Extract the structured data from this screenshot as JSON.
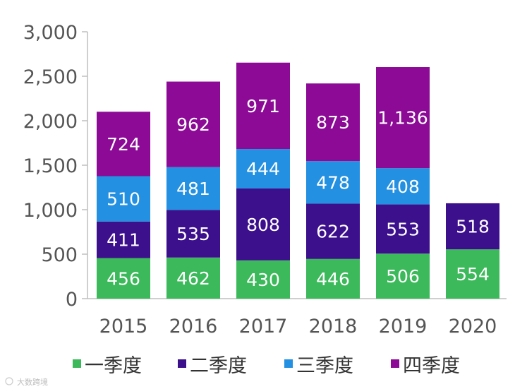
{
  "chart_data": {
    "type": "bar",
    "stacked": true,
    "categories": [
      "2015",
      "2016",
      "2017",
      "2018",
      "2019",
      "2020"
    ],
    "series": [
      {
        "name": "一季度",
        "color": "#3cb95a",
        "values": [
          456,
          462,
          430,
          446,
          506,
          554
        ],
        "labels": [
          "456",
          "462",
          "430",
          "446",
          "506",
          "554"
        ]
      },
      {
        "name": "二季度",
        "color": "#3c0f8c",
        "values": [
          411,
          535,
          808,
          622,
          553,
          518
        ],
        "labels": [
          "411",
          "535",
          "808",
          "622",
          "553",
          "518"
        ]
      },
      {
        "name": "三季度",
        "color": "#2390e1",
        "values": [
          510,
          481,
          444,
          478,
          408,
          null
        ],
        "labels": [
          "510",
          "481",
          "444",
          "478",
          "408",
          ""
        ]
      },
      {
        "name": "四季度",
        "color": "#8c0a96",
        "values": [
          724,
          962,
          971,
          873,
          1136,
          null
        ],
        "labels": [
          "724",
          "962",
          "971",
          "873",
          "1,136",
          ""
        ]
      }
    ],
    "y_ticks": [
      0,
      500,
      1000,
      1500,
      2000,
      2500,
      3000
    ],
    "y_tick_labels": [
      "0",
      "500",
      "1,000",
      "1,500",
      "2,000",
      "2,500",
      "3,000"
    ],
    "ylim": [
      0,
      3000
    ],
    "title": "",
    "xlabel": "",
    "ylabel": "",
    "legend_position": "bottom"
  },
  "watermark": "大数跨境"
}
